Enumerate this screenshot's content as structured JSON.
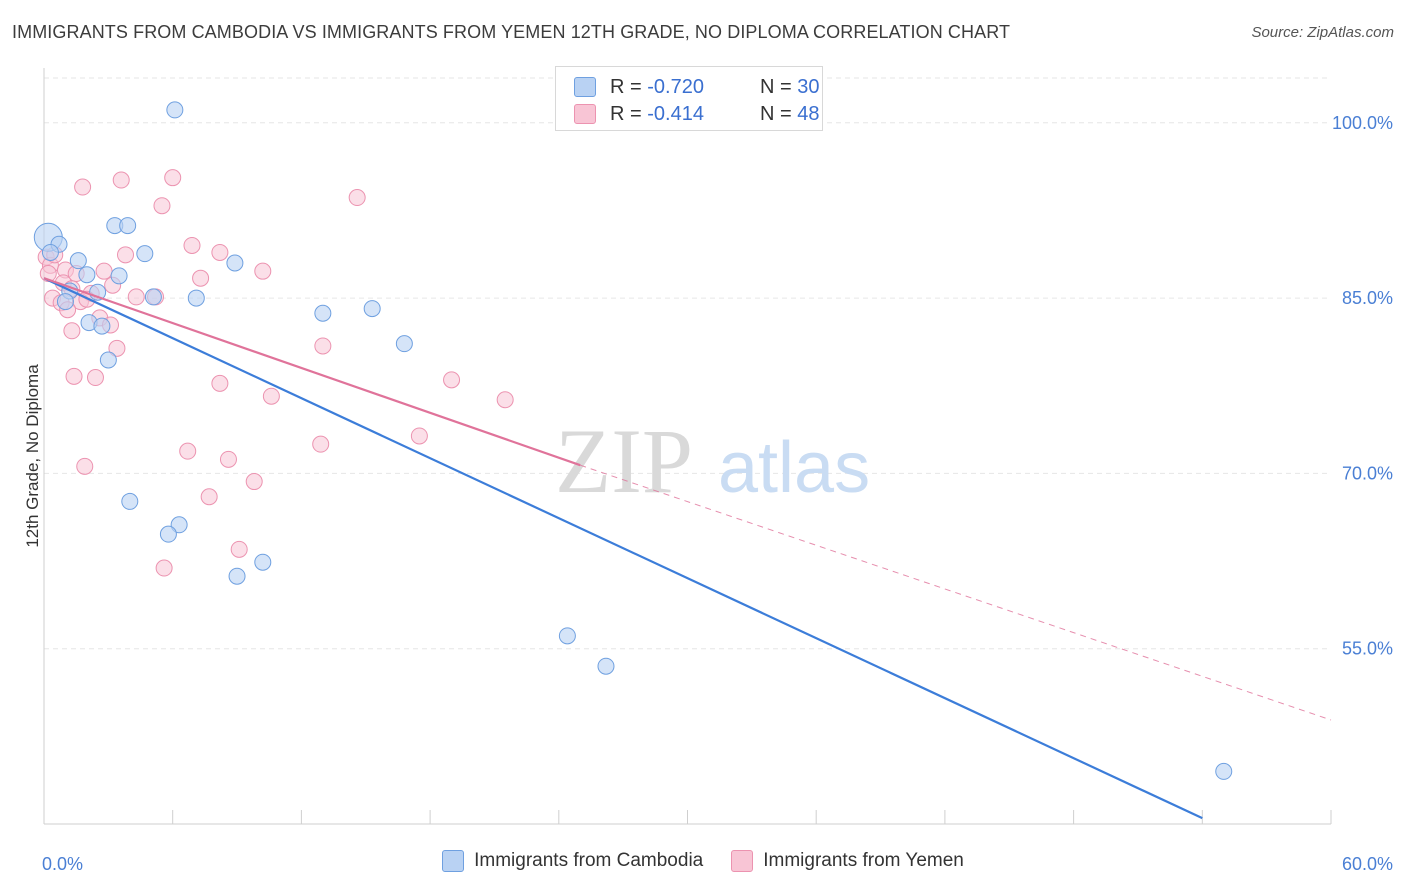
{
  "title": "IMMIGRANTS FROM CAMBODIA VS IMMIGRANTS FROM YEMEN 12TH GRADE, NO DIPLOMA CORRELATION CHART",
  "source": "Source: ZipAtlas.com",
  "legend": {
    "rows": [
      {
        "r_label": "R =",
        "r_value": "-0.720",
        "n_label": "N =",
        "n_value": "30"
      },
      {
        "r_label": "R =",
        "r_value": "-0.414",
        "n_label": "N =",
        "n_value": "48"
      }
    ]
  },
  "bottom_legend": {
    "cambodia": "Immigrants from Cambodia",
    "yemen": "Immigrants from Yemen"
  },
  "watermark": {
    "zip": "ZIP",
    "atlas": "atlas"
  },
  "colors": {
    "cambodia_fill": "#b9d2f3",
    "cambodia_stroke": "#6fa0e0",
    "cambodia_line": "#3c7dd9",
    "yemen_fill": "#f8c5d5",
    "yemen_stroke": "#ec93b0",
    "yemen_line": "#e0739a",
    "grid": "#e6e6e6"
  },
  "chart_data": {
    "type": "scatter",
    "ylabel": "12th Grade, No Diploma",
    "xlabel": "",
    "xlim": [
      0,
      60
    ],
    "ylim": [
      40,
      104
    ],
    "x_tick_labels": [
      {
        "value": 0,
        "label": "0.0%"
      },
      {
        "value": 60,
        "label": "60.0%"
      }
    ],
    "y_ticks": [
      {
        "value": 100,
        "label": "100.0%"
      },
      {
        "value": 85,
        "label": "85.0%"
      },
      {
        "value": 70,
        "label": "70.0%"
      },
      {
        "value": 55,
        "label": "55.0%"
      }
    ],
    "series": [
      {
        "name": "Immigrants from Cambodia",
        "points": [
          [
            0.2,
            90.2
          ],
          [
            0.7,
            89.6
          ],
          [
            0.3,
            88.9
          ],
          [
            1.6,
            88.2
          ],
          [
            6.1,
            101.1
          ],
          [
            3.3,
            91.2
          ],
          [
            3.9,
            91.2
          ],
          [
            4.7,
            88.8
          ],
          [
            2.0,
            87.0
          ],
          [
            8.9,
            88.0
          ],
          [
            3.5,
            86.9
          ],
          [
            2.5,
            85.5
          ],
          [
            5.1,
            85.1
          ],
          [
            7.1,
            85.0
          ],
          [
            1.2,
            85.6
          ],
          [
            1.0,
            84.7
          ],
          [
            13.0,
            83.7
          ],
          [
            15.3,
            84.1
          ],
          [
            2.1,
            82.9
          ],
          [
            2.7,
            82.6
          ],
          [
            16.8,
            81.1
          ],
          [
            3.0,
            79.7
          ],
          [
            4.0,
            67.6
          ],
          [
            6.3,
            65.6
          ],
          [
            5.8,
            64.8
          ],
          [
            10.2,
            62.4
          ],
          [
            9.0,
            61.2
          ],
          [
            24.4,
            56.1
          ],
          [
            26.2,
            53.5
          ],
          [
            55.0,
            44.5
          ]
        ],
        "trend": {
          "x0": 0.0,
          "y0": 86.7,
          "x1": 54.0,
          "y1": 40.5
        }
      },
      {
        "name": "Immigrants from Yemen",
        "points": [
          [
            0.1,
            88.5
          ],
          [
            0.3,
            87.8
          ],
          [
            0.2,
            87.1
          ],
          [
            0.5,
            88.7
          ],
          [
            1.0,
            87.4
          ],
          [
            1.5,
            87.1
          ],
          [
            2.8,
            87.3
          ],
          [
            3.8,
            88.7
          ],
          [
            6.9,
            89.5
          ],
          [
            8.2,
            88.9
          ],
          [
            7.3,
            86.7
          ],
          [
            10.2,
            87.3
          ],
          [
            0.9,
            86.3
          ],
          [
            1.3,
            85.8
          ],
          [
            2.2,
            85.4
          ],
          [
            3.2,
            86.1
          ],
          [
            0.4,
            85.0
          ],
          [
            0.8,
            84.6
          ],
          [
            1.7,
            84.7
          ],
          [
            2.0,
            84.9
          ],
          [
            4.3,
            85.1
          ],
          [
            5.2,
            85.1
          ],
          [
            1.1,
            84.0
          ],
          [
            2.6,
            83.3
          ],
          [
            1.3,
            82.2
          ],
          [
            3.1,
            82.7
          ],
          [
            13.0,
            80.9
          ],
          [
            2.4,
            78.2
          ],
          [
            1.4,
            78.3
          ],
          [
            3.4,
            80.7
          ],
          [
            8.2,
            77.7
          ],
          [
            10.6,
            76.6
          ],
          [
            19.0,
            78.0
          ],
          [
            21.5,
            76.3
          ],
          [
            6.7,
            71.9
          ],
          [
            8.6,
            71.2
          ],
          [
            1.9,
            70.6
          ],
          [
            7.7,
            68.0
          ],
          [
            9.8,
            69.3
          ],
          [
            17.5,
            73.2
          ],
          [
            12.9,
            72.5
          ],
          [
            5.5,
            92.9
          ],
          [
            3.6,
            95.1
          ],
          [
            1.8,
            94.5
          ],
          [
            14.6,
            93.6
          ],
          [
            6.0,
            95.3
          ],
          [
            9.1,
            63.5
          ],
          [
            5.6,
            61.9
          ]
        ],
        "trend": {
          "x0": 0.0,
          "y0": 86.7,
          "x1": 25.0,
          "y1": 70.7
        },
        "trend_extension": {
          "x0": 25.0,
          "y0": 70.7,
          "x1": 60.0,
          "y1": 48.9
        }
      }
    ]
  }
}
